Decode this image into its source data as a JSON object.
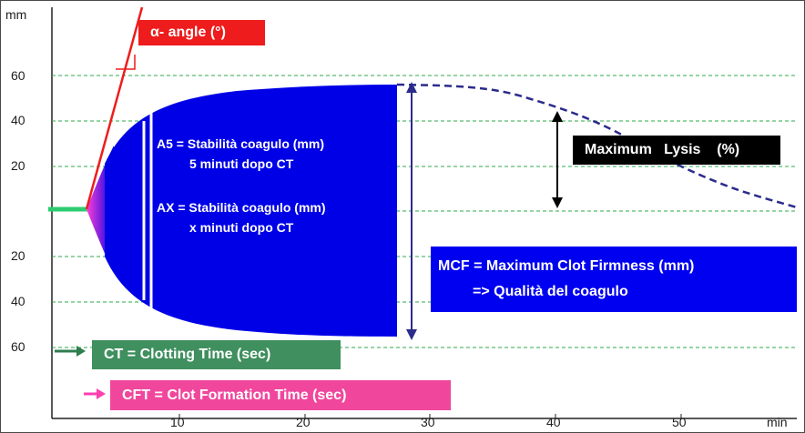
{
  "axes": {
    "y_unit": "mm",
    "x_unit": "min",
    "y_ticks_upper": [
      "60",
      "40",
      "20"
    ],
    "y_ticks_lower": [
      "20",
      "40",
      "60"
    ],
    "x_ticks": [
      "10",
      "20",
      "30",
      "40",
      "50"
    ]
  },
  "labels": {
    "alpha_angle": "α- angle (°)",
    "a5_line1": "A5 = Stabilità coagulo (mm)",
    "a5_line2": "5 minuti dopo CT",
    "ax_line1": "AX = Stabilità coagulo (mm)",
    "ax_line2": "x minuti dopo CT",
    "maximum_lysis": "Maximum   Lysis    (%)",
    "mcf_line1": "MCF = Maximum Clot Firmness (mm)",
    "mcf_line2": "=> Qualità  del coagulo",
    "ct": "CT = Clotting  Time (sec)",
    "cft": "CFT = Clot Formation Time (sec)"
  },
  "colors": {
    "clot_blue": "#0000e6",
    "alpha_red": "#ee1c1c",
    "mcf_blue": "#0000f0",
    "lysis_black": "#000000",
    "ct_green": "#3f8f5f",
    "ct_arrow": "#2e7d4f",
    "cft_magenta": "#f0479c",
    "cft_arrow": "#ff3fb0",
    "grid_green": "#2ea84a",
    "dashed_trace": "#2b2b8c"
  }
}
